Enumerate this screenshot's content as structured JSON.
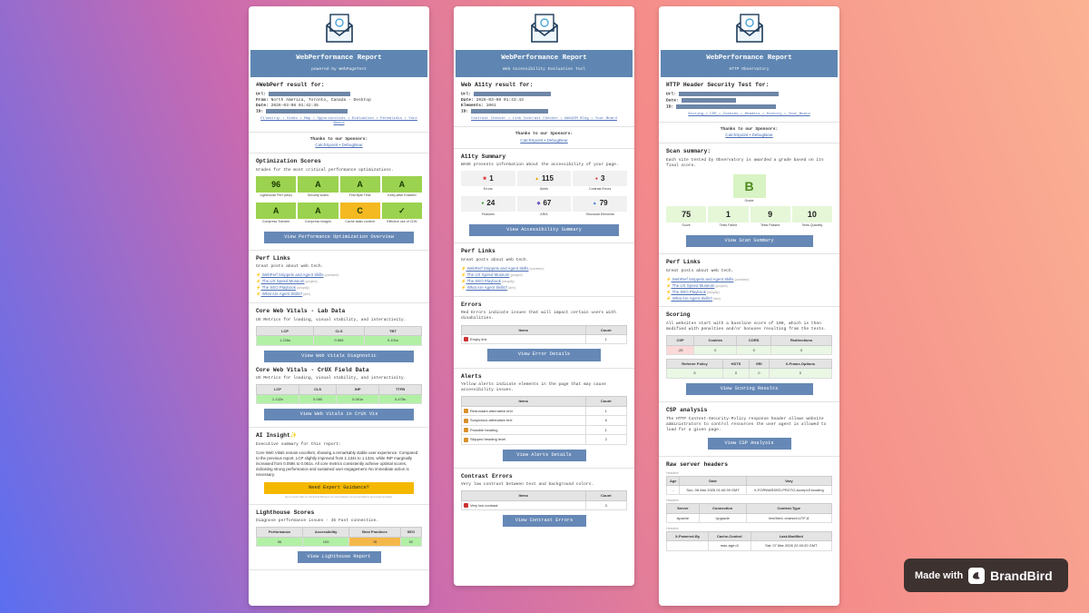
{
  "report1": {
    "title": "WebPerformance Report",
    "subtitle": "powered by WebPageTest",
    "result_heading": "#WebPerf result for:",
    "url_label": "Url:",
    "from_label": "From:",
    "from_value": "North America, Toronto, Canada - Desktop",
    "date_label": "Date:",
    "date_value": "2026-03-08 01:42:45",
    "id_label": "ID:",
    "nav": "Filmstrip • Video • Map • Opportunities • Evaluation • Permalinks • Your Board",
    "sponsor_text": "Thanks to our Sponsors:",
    "sponsors": "CatchSpoint • DebugBear",
    "opt_title": "Optimization Scores",
    "opt_desc": "Grades for the most critical performance optimizations.",
    "opt_scores": [
      {
        "v": "96",
        "l": "Lighthouse Perf (new)",
        "c": "#9bd24f"
      },
      {
        "v": "A",
        "l": "Security scans",
        "c": "#9bd24f"
      },
      {
        "v": "A",
        "l": "First Byte Time",
        "c": "#9bd24f"
      },
      {
        "v": "A",
        "l": "Keep-alive Enabled",
        "c": "#9bd24f"
      },
      {
        "v": "A",
        "l": "Compress Transfer",
        "c": "#9bd24f"
      },
      {
        "v": "A",
        "l": "Compress Images",
        "c": "#9bd24f"
      },
      {
        "v": "C",
        "l": "Cache static content",
        "c": "#f4b820"
      },
      {
        "v": "✓",
        "l": "Effective use of CDN",
        "c": "#9bd24f"
      }
    ],
    "opt_btn": "View Performance Optimization Overview",
    "perf_title": "Perf Links",
    "perf_desc": "Great posts about web tech.",
    "perf_links": [
      {
        "t": "WebPerf Snippets and Agent Skills",
        "n": "(combine)"
      },
      {
        "t": "The UX Speed Museum",
        "n": "(project)"
      },
      {
        "t": "The SEO Playbook",
        "n": "(shopify)"
      },
      {
        "t": "What Are Agent Skills?",
        "n": "(dev)"
      }
    ],
    "lab_title": "Core Web Vitals - Lab Data",
    "lab_desc": "UX Metrics for loading, visual stability, and interactivity.",
    "lab_headers": [
      "LCP",
      "CLS",
      "TBT"
    ],
    "lab_values": [
      "1.226s",
      "0.065",
      "0.101s"
    ],
    "lab_btn": "View Web Vitals Diagnostic",
    "crux_title": "Core Web Vitals - CrUX Field Data",
    "crux_desc": "UX Metrics for loading, visual stability, and interactivity.",
    "crux_headers": [
      "LCP",
      "CLS",
      "INP",
      "TTFB"
    ],
    "crux_values": [
      "1.132s",
      "0.080",
      "0.061s",
      "0.475s"
    ],
    "crux_btn": "View Web Vitals in CrUX Vis",
    "ai_title": "AI Insight",
    "ai_desc": "Executive summary for this report:",
    "ai_text": "Core Web Vitals remain excellent, showing a remarkably stable user experience. Compared to the previous report, LCP slightly improved from 1.134s to 1.132s, while INP marginally increased from 0.059s to 0.061s. All core metrics consistently achieve optimal scores, indicating strong performance and sustained user engagement. No immediate action is necessary.",
    "ai_btn": "Need Expert Guidance?",
    "ai_note": "Get in touch with our Technical Partners for personalized recommendations and implementation.",
    "lh_title": "Lighthouse Scores",
    "lh_desc": "Diagnose performance issues - 3G Fast connection.",
    "lh_headers": [
      "Performance",
      "Accessibility",
      "Best Practices",
      "SEO"
    ],
    "lh_values": [
      "96",
      "100",
      "78",
      "92"
    ],
    "lh_btn": "View Lighthouse Report"
  },
  "report2": {
    "title": "WebPerformance Report",
    "subtitle": "Web Accessibility Evaluation Tool",
    "result_heading": "Web A11ty result for:",
    "url_label": "Url:",
    "date_label": "Date:",
    "date_value": "2026-03-08 01:43:43",
    "elements_label": "Elements:",
    "elements_value": "1061",
    "id_label": "ID:",
    "nav": "Contrast Checker • Link Contrast Checker • WebAIM Blog • Your Board",
    "sponsor_text": "Thanks to our Sponsors:",
    "sponsors": "CatchSpoint • DebugBear",
    "sum_title": "A11ty Summary",
    "sum_desc": "WAVE presents information about the accessibility of your page.",
    "stats": [
      {
        "v": "1",
        "l": "Errors",
        "i": "✖",
        "c": "#d33"
      },
      {
        "v": "115",
        "l": "Alerts",
        "i": "▲",
        "c": "#e8a200"
      },
      {
        "v": "3",
        "l": "Contrast Errors",
        "i": "●",
        "c": "#d33"
      },
      {
        "v": "24",
        "l": "Features",
        "i": "●",
        "c": "#2a9a2a"
      },
      {
        "v": "67",
        "l": "ARIA",
        "i": "◆",
        "c": "#7050c0"
      },
      {
        "v": "79",
        "l": "Structural Elements",
        "i": "▲",
        "c": "#3a7acc"
      }
    ],
    "sum_btn": "View Accessibility Summary",
    "perf_title": "Perf Links",
    "perf_desc": "Great posts about web tech.",
    "perf_links": [
      {
        "t": "WebPerf Snippets and Agent Skills",
        "n": "(combine)"
      },
      {
        "t": "The UX Speed Museum",
        "n": "(project)"
      },
      {
        "t": "The SEO Playbook",
        "n": "(shopify)"
      },
      {
        "t": "What Are Agent Skills?",
        "n": "(dev)"
      }
    ],
    "err_title": "Errors",
    "err_desc": "Red Errors indicate issues that will impact certain users with disabilities.",
    "items_header": "Items",
    "count_header": "Count",
    "errors": [
      {
        "t": "Empty link",
        "c": "1"
      }
    ],
    "err_btn": "View Error Details",
    "alert_title": "Alerts",
    "alert_desc": "Yellow alerts indicate elements in the page that may cause accessibility issues.",
    "alerts": [
      {
        "t": "Redundant alternative text",
        "c": "1"
      },
      {
        "t": "Suspicious alternative text",
        "c": "6"
      },
      {
        "t": "Possible heading",
        "c": "1"
      },
      {
        "t": "Skipped heading level",
        "c": "2"
      }
    ],
    "alert_btn": "View Alerts Details",
    "contrast_title": "Contrast Errors",
    "contrast_desc": "Very low contrast between text and background colors.",
    "contrast": [
      {
        "t": "Very low contrast",
        "c": "3"
      }
    ],
    "contrast_btn": "View Contrast Errors"
  },
  "report3": {
    "title": "WebPerformance Report",
    "subtitle": "HTTP Observatory",
    "result_heading": "HTTP Header Security Test for:",
    "url_label": "Url:",
    "date_label": "Date:",
    "id_label": "ID:",
    "nav": "Scoring • CSP • Cookies • Headers • History • Your Board",
    "sponsor_text": "Thanks to our Sponsors:",
    "sponsors": "CatchSpoint • DebugBear",
    "scan_title": "Scan summary:",
    "scan_desc": "Each site tested by Observatory is awarded a grade based on its final score.",
    "grade": "B",
    "grade_label": "Grade",
    "scan_stats": [
      {
        "v": "75",
        "l": "Score"
      },
      {
        "v": "1",
        "l": "Tests Failed"
      },
      {
        "v": "9",
        "l": "Tests Passed"
      },
      {
        "v": "10",
        "l": "Tests Quantity"
      }
    ],
    "scan_btn": "View Scan Summary",
    "perf_title": "Perf Links",
    "perf_desc": "Great posts about web tech.",
    "perf_links": [
      {
        "t": "WebPerf Snippets and Agent Skills",
        "n": "(combine)"
      },
      {
        "t": "The UX Speed Museum",
        "n": "(project)"
      },
      {
        "t": "The SEO Playbook",
        "n": "(shopify)"
      },
      {
        "t": "What Are Agent Skills?",
        "n": "(dev)"
      }
    ],
    "scoring_title": "Scoring",
    "scoring_desc": "All websites start with a baseline score of 100, which is then modified with penalties and/or bonuses resulting from the tests.",
    "score_headers1": [
      "CSP",
      "Cookies",
      "CORS",
      "Redirections"
    ],
    "score_values1": [
      "-25",
      "0",
      "0",
      "0"
    ],
    "score_headers2": [
      "Referrer Policy",
      "HSTS",
      "SRI",
      "X-Frame-Options"
    ],
    "score_values2": [
      "5",
      "0",
      "0",
      "0"
    ],
    "scoring_btn": "View Scoring Results",
    "csp_title": "CSP analysis",
    "csp_desc": "The HTTP Content-Security-Policy response header allows website administrators to control resources the user agent is allowed to load for a given page.",
    "csp_btn": "View CSP Analysis",
    "raw_title": "Raw server headers",
    "headers_label": "Headers",
    "raw1_headers": [
      "Age",
      "Date",
      "Vary"
    ],
    "raw1_values": [
      "-",
      "Sun, 08 Mar 2026 01:40:39 GMT",
      "X-FORWARDED-PROTO,Accept-Encoding"
    ],
    "raw2_headers": [
      "Server",
      "Connection",
      "Content-Type"
    ],
    "raw2_values": [
      "Apache",
      "Upgrade",
      "text/html; charset=UTF-8"
    ],
    "raw3_headers": [
      "X-Powered-By",
      "Cache-Control",
      "Last-Modified"
    ],
    "raw3_values": [
      "",
      "max-age=0",
      "Sat, 07 Mar 2026 22:40:20 GMT"
    ]
  },
  "brand": {
    "made_with": "Made with",
    "name": "BrandBird"
  }
}
